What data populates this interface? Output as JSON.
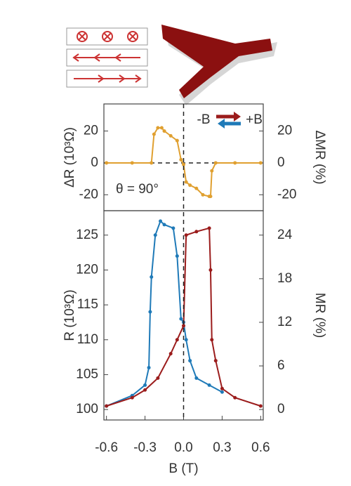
{
  "chart_data": [
    {
      "type": "line",
      "y_label": "ΔR (10³Ω)",
      "y2_label": "ΔMR (%)",
      "annotations": [
        "-B",
        "+B",
        "θ = 90°"
      ],
      "xlim": [
        -0.62,
        0.62
      ],
      "ylim": [
        -30,
        37
      ],
      "yticks": [
        -20,
        0,
        20
      ],
      "y2lim": [
        -30,
        37
      ],
      "y2ticks": [
        -20,
        0,
        20
      ],
      "series": [
        {
          "color": "#e0a030",
          "x": [
            -0.6,
            -0.4,
            -0.25,
            -0.23,
            -0.2,
            -0.17,
            -0.15,
            -0.1,
            -0.05,
            -0.02,
            0,
            0.02,
            0.05,
            0.1,
            0.15,
            0.2,
            0.21,
            0.22,
            0.25,
            0.4,
            0.6
          ],
          "values": [
            0,
            0,
            0,
            18,
            22,
            22,
            20,
            17,
            14,
            2,
            -1,
            -12,
            -14,
            -16,
            -20,
            -21,
            -21,
            -5,
            0,
            0,
            0
          ]
        }
      ]
    },
    {
      "type": "line",
      "x_label": "B (T)",
      "y_label": "R (10³Ω)",
      "y2_label": "MR (%)",
      "xlim": [
        -0.62,
        0.62
      ],
      "xticks": [
        -0.6,
        -0.3,
        {
          "value": 0,
          "label": "0.0"
        },
        0.3,
        0.6
      ],
      "ylim": [
        98.5,
        128.5
      ],
      "yticks": [
        100,
        105,
        110,
        115,
        120,
        125
      ],
      "y2lim": [
        -1.44,
        27.36
      ],
      "y2ticks": [
        0,
        6,
        12,
        18,
        24
      ],
      "series": [
        {
          "color": "#1f7ab8",
          "x": [
            -0.6,
            -0.4,
            -0.3,
            -0.27,
            -0.26,
            -0.25,
            -0.22,
            -0.18,
            -0.15,
            -0.08,
            -0.05,
            -0.02,
            0,
            0.02,
            0.05,
            0.1,
            0.2,
            0.3
          ],
          "values": [
            100.5,
            102,
            103.5,
            106,
            114,
            119,
            125,
            127,
            126.5,
            126,
            122,
            113,
            112.5,
            110,
            107,
            104.5,
            103.5,
            102.5
          ]
        },
        {
          "color": "#9b1c1c",
          "x": [
            -0.6,
            -0.4,
            -0.3,
            -0.2,
            -0.1,
            -0.05,
            0,
            0.02,
            0.1,
            0.2,
            0.21,
            0.22,
            0.25,
            0.3,
            0.4,
            0.6
          ],
          "values": [
            100.5,
            101.7,
            102.8,
            104.5,
            108,
            110,
            112,
            125,
            125.5,
            126,
            120,
            110,
            107,
            103,
            101.7,
            100.5
          ]
        }
      ]
    }
  ]
}
